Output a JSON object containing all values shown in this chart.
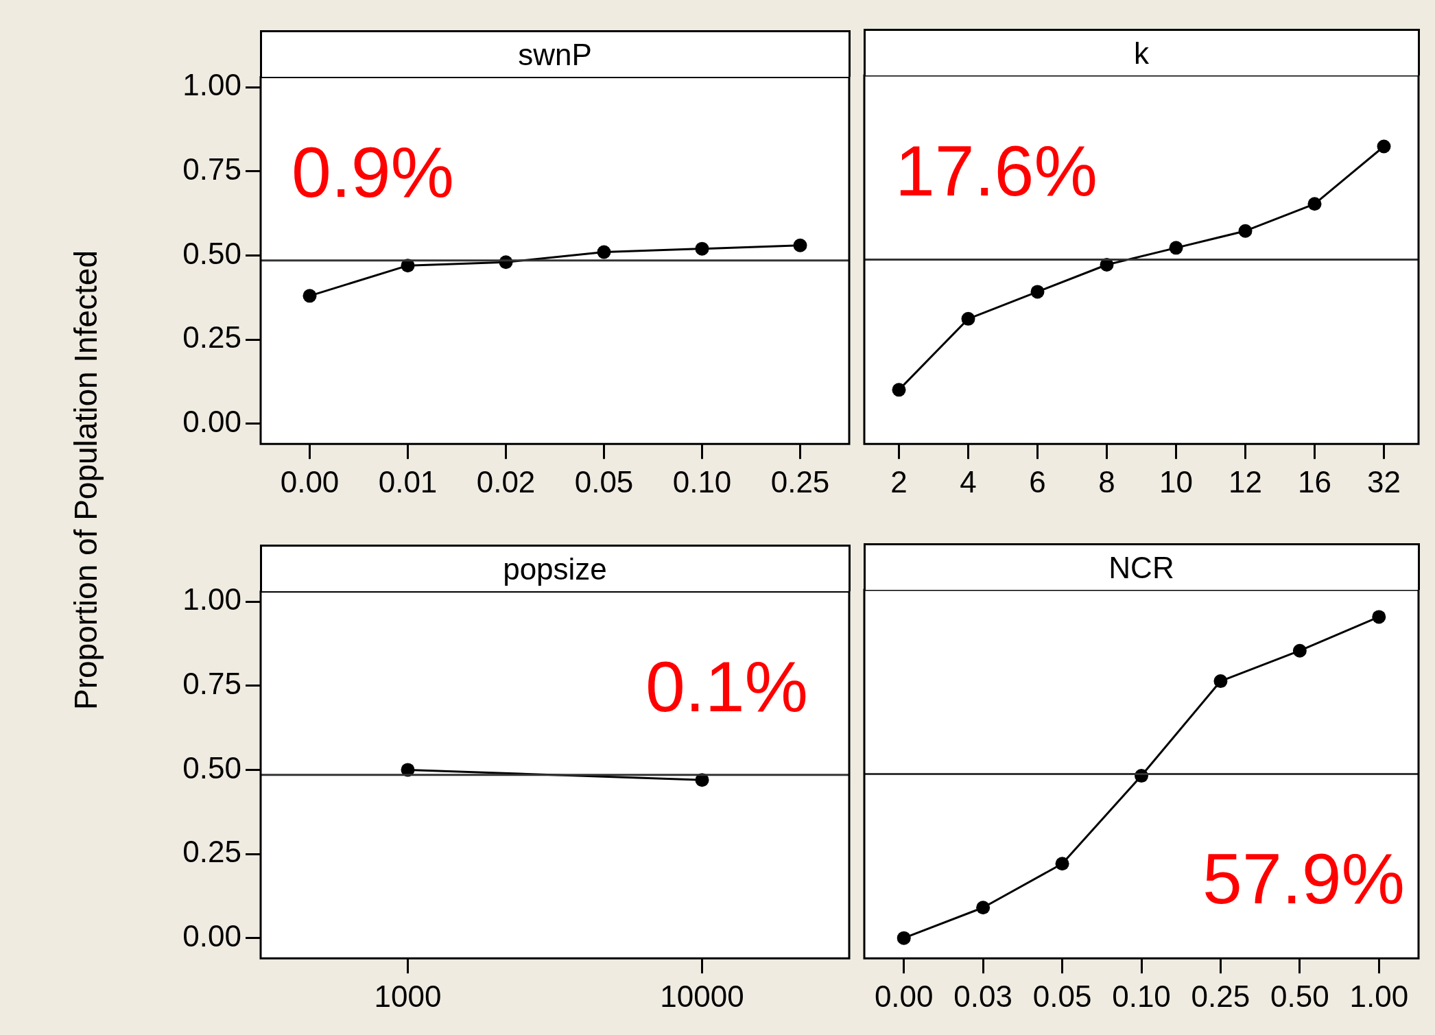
{
  "chart_data": [
    {
      "type": "line",
      "title": "swnP",
      "ylabel": "Proportion of Population Infected",
      "categories": [
        "0.00",
        "0.01",
        "0.02",
        "0.05",
        "0.10",
        "0.25"
      ],
      "values": [
        0.38,
        0.47,
        0.48,
        0.51,
        0.52,
        0.53
      ],
      "color": "#000000",
      "marker": "circle",
      "ylim": [
        -0.06,
        1.03
      ],
      "yticks": [
        {
          "value": 0,
          "label": "0.00"
        },
        {
          "value": 0.25,
          "label": "0.25"
        },
        {
          "value": 0.5,
          "label": "0.50"
        },
        {
          "value": 0.75,
          "label": "0.75"
        },
        {
          "value": 1,
          "label": "1.00"
        }
      ],
      "ref_lines": [
        {
          "axis": "y",
          "value": 0.485,
          "color": "#333333"
        }
      ],
      "annotations": [
        "0.9%"
      ],
      "grid": false,
      "legend": false
    },
    {
      "type": "line",
      "title": "k",
      "categories": [
        "2",
        "4",
        "6",
        "8",
        "10",
        "12",
        "16",
        "32"
      ],
      "values": [
        0.1,
        0.31,
        0.39,
        0.47,
        0.52,
        0.57,
        0.65,
        0.82
      ],
      "color": "#000000",
      "marker": "circle",
      "ylim": [
        -0.06,
        1.03
      ],
      "tick_labels": "x",
      "ref_lines": [
        {
          "axis": "y",
          "value": 0.485,
          "color": "#333333"
        }
      ],
      "annotations": [
        "17.6%"
      ],
      "grid": false,
      "legend": false
    },
    {
      "type": "line",
      "title": "popsize",
      "categories": [
        "1000",
        "10000"
      ],
      "values": [
        0.5,
        0.47
      ],
      "color": "#000000",
      "marker": "circle",
      "ylim": [
        -0.06,
        1.03
      ],
      "yticks": [
        {
          "value": 0,
          "label": "0.00"
        },
        {
          "value": 0.25,
          "label": "0.25"
        },
        {
          "value": 0.5,
          "label": "0.50"
        },
        {
          "value": 0.75,
          "label": "0.75"
        },
        {
          "value": 1,
          "label": "1.00"
        }
      ],
      "ref_lines": [
        {
          "axis": "y",
          "value": 0.485,
          "color": "#333333"
        }
      ],
      "annotations": [
        "0.1%"
      ],
      "grid": false,
      "legend": false
    },
    {
      "type": "line",
      "title": "NCR",
      "categories": [
        "0.00",
        "0.03",
        "0.05",
        "0.10",
        "0.25",
        "0.50",
        "1.00"
      ],
      "values": [
        0.0,
        0.09,
        0.22,
        0.48,
        0.76,
        0.85,
        0.95
      ],
      "color": "#000000",
      "marker": "circle",
      "ylim": [
        -0.06,
        1.03
      ],
      "tick_labels": "x",
      "ref_lines": [
        {
          "axis": "y",
          "value": 0.485,
          "color": "#333333"
        }
      ],
      "annotations": [
        "57.9%"
      ],
      "grid": false,
      "legend": false
    }
  ]
}
